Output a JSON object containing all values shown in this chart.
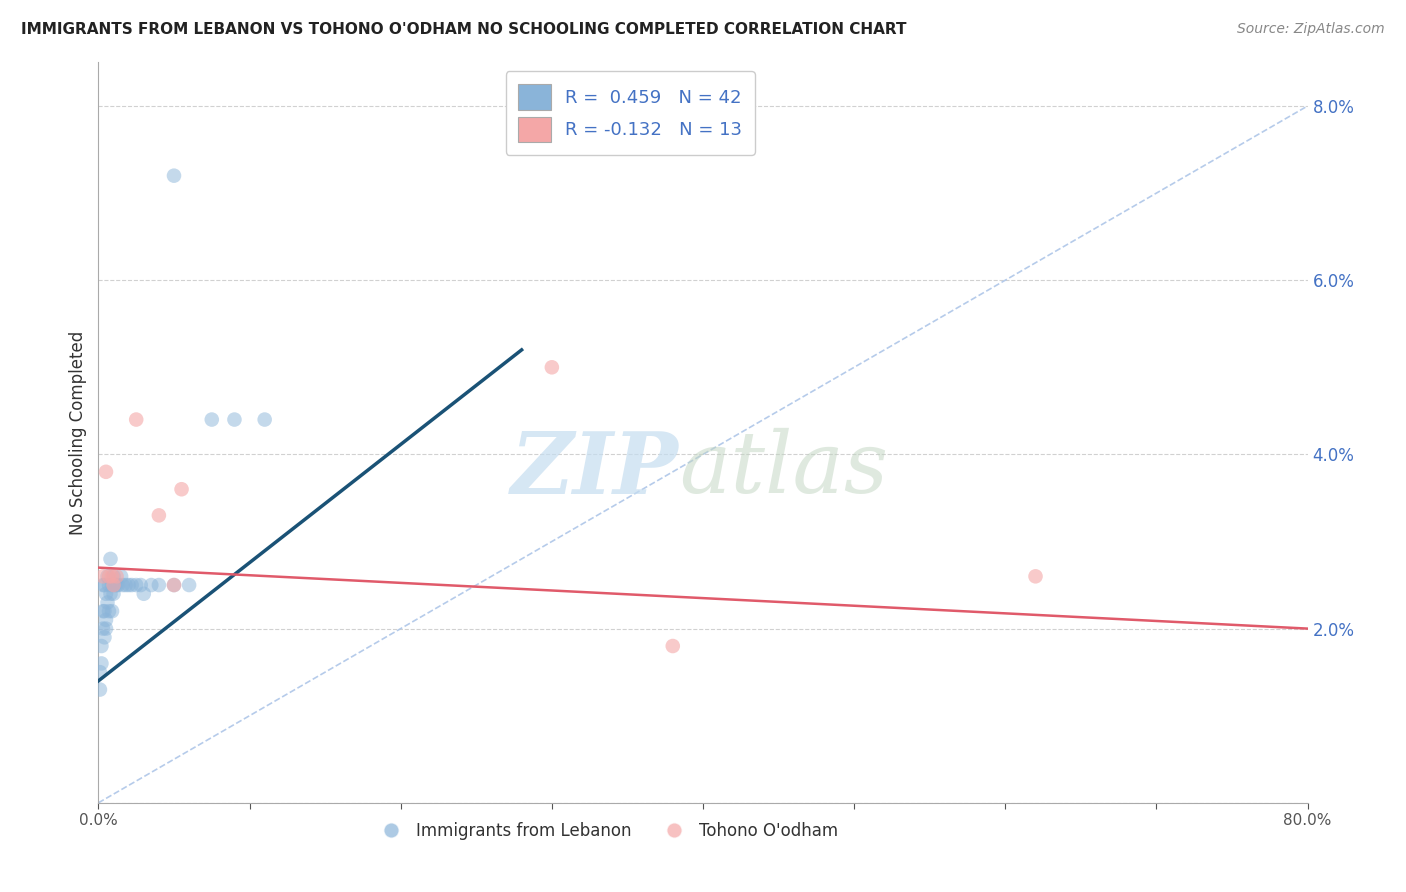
{
  "title": "IMMIGRANTS FROM LEBANON VS TOHONO O'ODHAM NO SCHOOLING COMPLETED CORRELATION CHART",
  "source": "Source: ZipAtlas.com",
  "ylabel": "No Schooling Completed",
  "xlim": [
    0,
    0.8
  ],
  "ylim": [
    0,
    0.085
  ],
  "xtick_positions": [
    0.0,
    0.1,
    0.2,
    0.3,
    0.4,
    0.5,
    0.6,
    0.7,
    0.8
  ],
  "xticklabels": [
    "0.0%",
    "",
    "",
    "",
    "",
    "",
    "",
    "",
    "80.0%"
  ],
  "ytick_positions": [
    0.0,
    0.02,
    0.04,
    0.06,
    0.08
  ],
  "yticklabels": [
    "",
    "2.0%",
    "4.0%",
    "6.0%",
    "8.0%"
  ],
  "blue_color": "#8ab4d9",
  "pink_color": "#f4a7a7",
  "blue_line_color": "#1a5276",
  "pink_line_color": "#e05a6a",
  "diagonal_color": "#aec6e8",
  "ytick_color": "#4472c4",
  "background_color": "#ffffff",
  "blue_x": [
    0.001,
    0.001,
    0.002,
    0.002,
    0.003,
    0.003,
    0.003,
    0.004,
    0.004,
    0.004,
    0.005,
    0.005,
    0.005,
    0.006,
    0.006,
    0.007,
    0.007,
    0.008,
    0.008,
    0.009,
    0.009,
    0.01,
    0.01,
    0.011,
    0.012,
    0.013,
    0.015,
    0.016,
    0.018,
    0.02,
    0.022,
    0.025,
    0.028,
    0.03,
    0.035,
    0.04,
    0.05,
    0.06,
    0.075,
    0.09,
    0.11,
    0.05
  ],
  "blue_y": [
    0.015,
    0.013,
    0.018,
    0.016,
    0.022,
    0.02,
    0.025,
    0.019,
    0.022,
    0.025,
    0.021,
    0.024,
    0.02,
    0.023,
    0.026,
    0.022,
    0.025,
    0.024,
    0.028,
    0.022,
    0.025,
    0.024,
    0.026,
    0.025,
    0.025,
    0.025,
    0.026,
    0.025,
    0.025,
    0.025,
    0.025,
    0.025,
    0.025,
    0.024,
    0.025,
    0.025,
    0.025,
    0.025,
    0.044,
    0.044,
    0.044,
    0.072
  ],
  "pink_x": [
    0.003,
    0.005,
    0.007,
    0.009,
    0.01,
    0.012,
    0.025,
    0.04,
    0.05,
    0.055,
    0.38,
    0.62,
    0.3
  ],
  "pink_y": [
    0.026,
    0.038,
    0.026,
    0.026,
    0.025,
    0.026,
    0.044,
    0.033,
    0.025,
    0.036,
    0.018,
    0.026,
    0.05
  ],
  "blue_line_x0": 0.0,
  "blue_line_y0": 0.014,
  "blue_line_x1": 0.28,
  "blue_line_y1": 0.052,
  "pink_line_x0": 0.0,
  "pink_line_y0": 0.027,
  "pink_line_x1": 0.8,
  "pink_line_y1": 0.02
}
